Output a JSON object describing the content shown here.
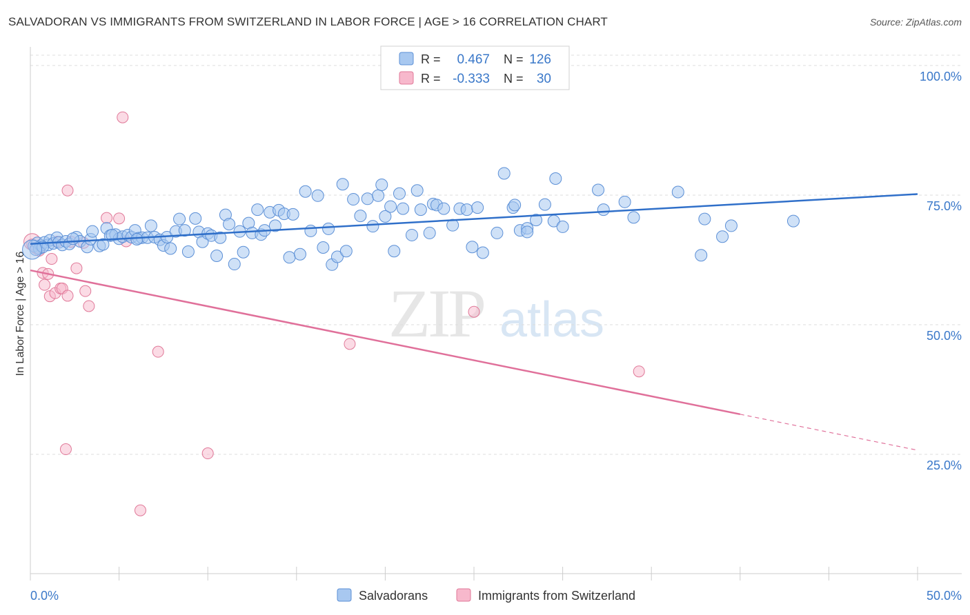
{
  "title": "SALVADORAN VS IMMIGRANTS FROM SWITZERLAND IN LABOR FORCE | AGE > 16 CORRELATION CHART",
  "source": "Source: ZipAtlas.com",
  "watermark": {
    "zip": "ZIP",
    "atlas": "atlas"
  },
  "legend_top": {
    "rows": [
      {
        "r_label": "R =",
        "r_value": "0.467",
        "n_label": "N =",
        "n_value": "126"
      },
      {
        "r_label": "R =",
        "r_value": "-0.333",
        "n_label": "N =",
        "n_value": "30"
      }
    ]
  },
  "legend_bottom": [
    "Salvadorans",
    "Immigrants from Switzerland"
  ],
  "colors": {
    "blue_fill": "#a8c8f0",
    "blue_stroke": "#5b8fd6",
    "blue_line": "#2f6fc9",
    "pink_fill": "#f7b8cc",
    "pink_stroke": "#e07898",
    "pink_line": "#e0709a",
    "value_text": "#3a78c9",
    "grid": "#dddddd"
  },
  "chart_data": {
    "type": "scatter",
    "title": "SALVADORAN VS IMMIGRANTS FROM SWITZERLAND IN LABOR FORCE | AGE > 16 CORRELATION CHART",
    "xlabel": "",
    "ylabel": "In Labor Force | Age > 16",
    "xlim": [
      0,
      50
    ],
    "ylim": [
      2,
      102
    ],
    "x_tick_labels": [
      "0.0%",
      "50.0%"
    ],
    "y_tick_labels": [
      "25.0%",
      "50.0%",
      "75.0%",
      "100.0%"
    ],
    "y_ticks": [
      25,
      50,
      75,
      100
    ],
    "grid": true,
    "legend_position": "top-center",
    "series": [
      {
        "name": "Salvadorans",
        "r": 0.467,
        "n": 126,
        "trend": {
          "x": [
            0,
            50
          ],
          "y": [
            65.6,
            75.2
          ],
          "dashed_from": null
        },
        "points": [
          [
            0.2,
            65.2
          ],
          [
            0.4,
            65.8
          ],
          [
            0.5,
            64.7
          ],
          [
            0.6,
            65.3
          ],
          [
            0.8,
            65.9
          ],
          [
            1.0,
            65.4
          ],
          [
            1.1,
            66.3
          ],
          [
            1.3,
            65.7
          ],
          [
            1.5,
            66.8
          ],
          [
            1.6,
            65.9
          ],
          [
            1.8,
            65.4
          ],
          [
            2.0,
            66.1
          ],
          [
            2.2,
            65.6
          ],
          [
            2.6,
            66.9
          ],
          [
            2.8,
            66.1
          ],
          [
            3.2,
            65.0
          ],
          [
            3.4,
            66.5
          ],
          [
            3.5,
            68.0
          ],
          [
            3.9,
            65.2
          ],
          [
            4.1,
            65.5
          ],
          [
            4.3,
            68.6
          ],
          [
            4.5,
            67.2
          ],
          [
            4.8,
            67.4
          ],
          [
            5.0,
            66.6
          ],
          [
            5.2,
            67.0
          ],
          [
            5.5,
            67.3
          ],
          [
            5.7,
            66.9
          ],
          [
            5.9,
            68.2
          ],
          [
            6.1,
            66.7
          ],
          [
            6.3,
            66.8
          ],
          [
            6.6,
            66.8
          ],
          [
            6.8,
            69.1
          ],
          [
            7.0,
            66.9
          ],
          [
            7.3,
            66.4
          ],
          [
            7.5,
            65.3
          ],
          [
            7.7,
            66.9
          ],
          [
            7.9,
            64.7
          ],
          [
            8.2,
            68.0
          ],
          [
            8.4,
            70.4
          ],
          [
            8.7,
            68.2
          ],
          [
            8.9,
            64.1
          ],
          [
            9.3,
            70.5
          ],
          [
            9.5,
            67.9
          ],
          [
            9.7,
            66.0
          ],
          [
            10.0,
            67.6
          ],
          [
            10.2,
            67.2
          ],
          [
            10.5,
            63.3
          ],
          [
            10.7,
            66.8
          ],
          [
            11.0,
            71.2
          ],
          [
            11.2,
            69.4
          ],
          [
            11.5,
            61.7
          ],
          [
            11.8,
            68.0
          ],
          [
            12.0,
            64.0
          ],
          [
            12.3,
            69.6
          ],
          [
            12.5,
            67.7
          ],
          [
            12.8,
            72.2
          ],
          [
            13.0,
            67.4
          ],
          [
            13.2,
            68.2
          ],
          [
            13.5,
            71.7
          ],
          [
            13.8,
            69.1
          ],
          [
            14.0,
            72.1
          ],
          [
            14.3,
            71.4
          ],
          [
            14.6,
            63.0
          ],
          [
            14.8,
            71.3
          ],
          [
            15.2,
            63.6
          ],
          [
            15.5,
            75.7
          ],
          [
            15.8,
            68.1
          ],
          [
            16.2,
            74.9
          ],
          [
            16.5,
            64.9
          ],
          [
            16.8,
            68.5
          ],
          [
            17.0,
            61.6
          ],
          [
            17.3,
            63.1
          ],
          [
            17.6,
            77.1
          ],
          [
            17.8,
            64.2
          ],
          [
            18.2,
            74.2
          ],
          [
            18.6,
            71.0
          ],
          [
            19.0,
            74.3
          ],
          [
            19.3,
            69.0
          ],
          [
            19.6,
            74.9
          ],
          [
            19.8,
            77.0
          ],
          [
            20.0,
            70.9
          ],
          [
            20.3,
            72.8
          ],
          [
            20.5,
            64.2
          ],
          [
            20.8,
            75.3
          ],
          [
            21.0,
            72.4
          ],
          [
            21.5,
            67.3
          ],
          [
            21.8,
            75.9
          ],
          [
            22.0,
            72.2
          ],
          [
            22.5,
            67.7
          ],
          [
            22.7,
            73.3
          ],
          [
            22.9,
            73.1
          ],
          [
            23.3,
            72.4
          ],
          [
            23.8,
            69.2
          ],
          [
            24.2,
            72.4
          ],
          [
            24.6,
            72.2
          ],
          [
            24.9,
            65.0
          ],
          [
            25.2,
            72.6
          ],
          [
            25.5,
            63.9
          ],
          [
            26.3,
            67.7
          ],
          [
            26.7,
            79.2
          ],
          [
            27.2,
            72.6
          ],
          [
            27.3,
            73.1
          ],
          [
            27.6,
            68.2
          ],
          [
            28.0,
            68.6
          ],
          [
            28.0,
            67.9
          ],
          [
            28.5,
            70.2
          ],
          [
            29.0,
            73.2
          ],
          [
            29.5,
            70.0
          ],
          [
            29.6,
            78.2
          ],
          [
            30.0,
            68.9
          ],
          [
            32.0,
            76.0
          ],
          [
            32.3,
            72.2
          ],
          [
            33.5,
            73.7
          ],
          [
            34.0,
            70.7
          ],
          [
            36.5,
            75.6
          ],
          [
            37.8,
            63.4
          ],
          [
            38.0,
            70.4
          ],
          [
            39.0,
            67.0
          ],
          [
            39.5,
            69.1
          ],
          [
            43.0,
            70.0
          ],
          [
            0.3,
            64.5
          ],
          [
            0.7,
            65.0
          ],
          [
            2.4,
            66.6
          ],
          [
            4.6,
            67.3
          ],
          [
            6.0,
            66.5
          ]
        ]
      },
      {
        "name": "Immigrants from Switzerland",
        "r": -0.333,
        "n": 30,
        "trend": {
          "x": [
            0,
            50
          ],
          "y": [
            60.5,
            25.8
          ],
          "dashed_from": 40
        },
        "points": [
          [
            0.1,
            65.5
          ],
          [
            0.3,
            64.8
          ],
          [
            0.5,
            64.3
          ],
          [
            0.7,
            60.0
          ],
          [
            0.8,
            57.7
          ],
          [
            1.0,
            59.8
          ],
          [
            1.1,
            55.5
          ],
          [
            1.2,
            62.7
          ],
          [
            1.4,
            56.1
          ],
          [
            1.7,
            57.0
          ],
          [
            1.8,
            57.0
          ],
          [
            2.1,
            55.6
          ],
          [
            2.3,
            66.0
          ],
          [
            2.6,
            60.9
          ],
          [
            3.1,
            56.5
          ],
          [
            3.3,
            53.6
          ],
          [
            4.3,
            70.6
          ],
          [
            5.0,
            70.5
          ],
          [
            5.4,
            66.1
          ],
          [
            5.2,
            90.0
          ],
          [
            7.2,
            44.8
          ],
          [
            2.1,
            75.9
          ],
          [
            2.0,
            26.0
          ],
          [
            10.0,
            25.2
          ],
          [
            6.2,
            14.2
          ],
          [
            18.0,
            46.3
          ],
          [
            25.0,
            52.5
          ],
          [
            34.3,
            41.0
          ],
          [
            1.5,
            66.0
          ],
          [
            3.0,
            65.8
          ]
        ]
      }
    ]
  }
}
